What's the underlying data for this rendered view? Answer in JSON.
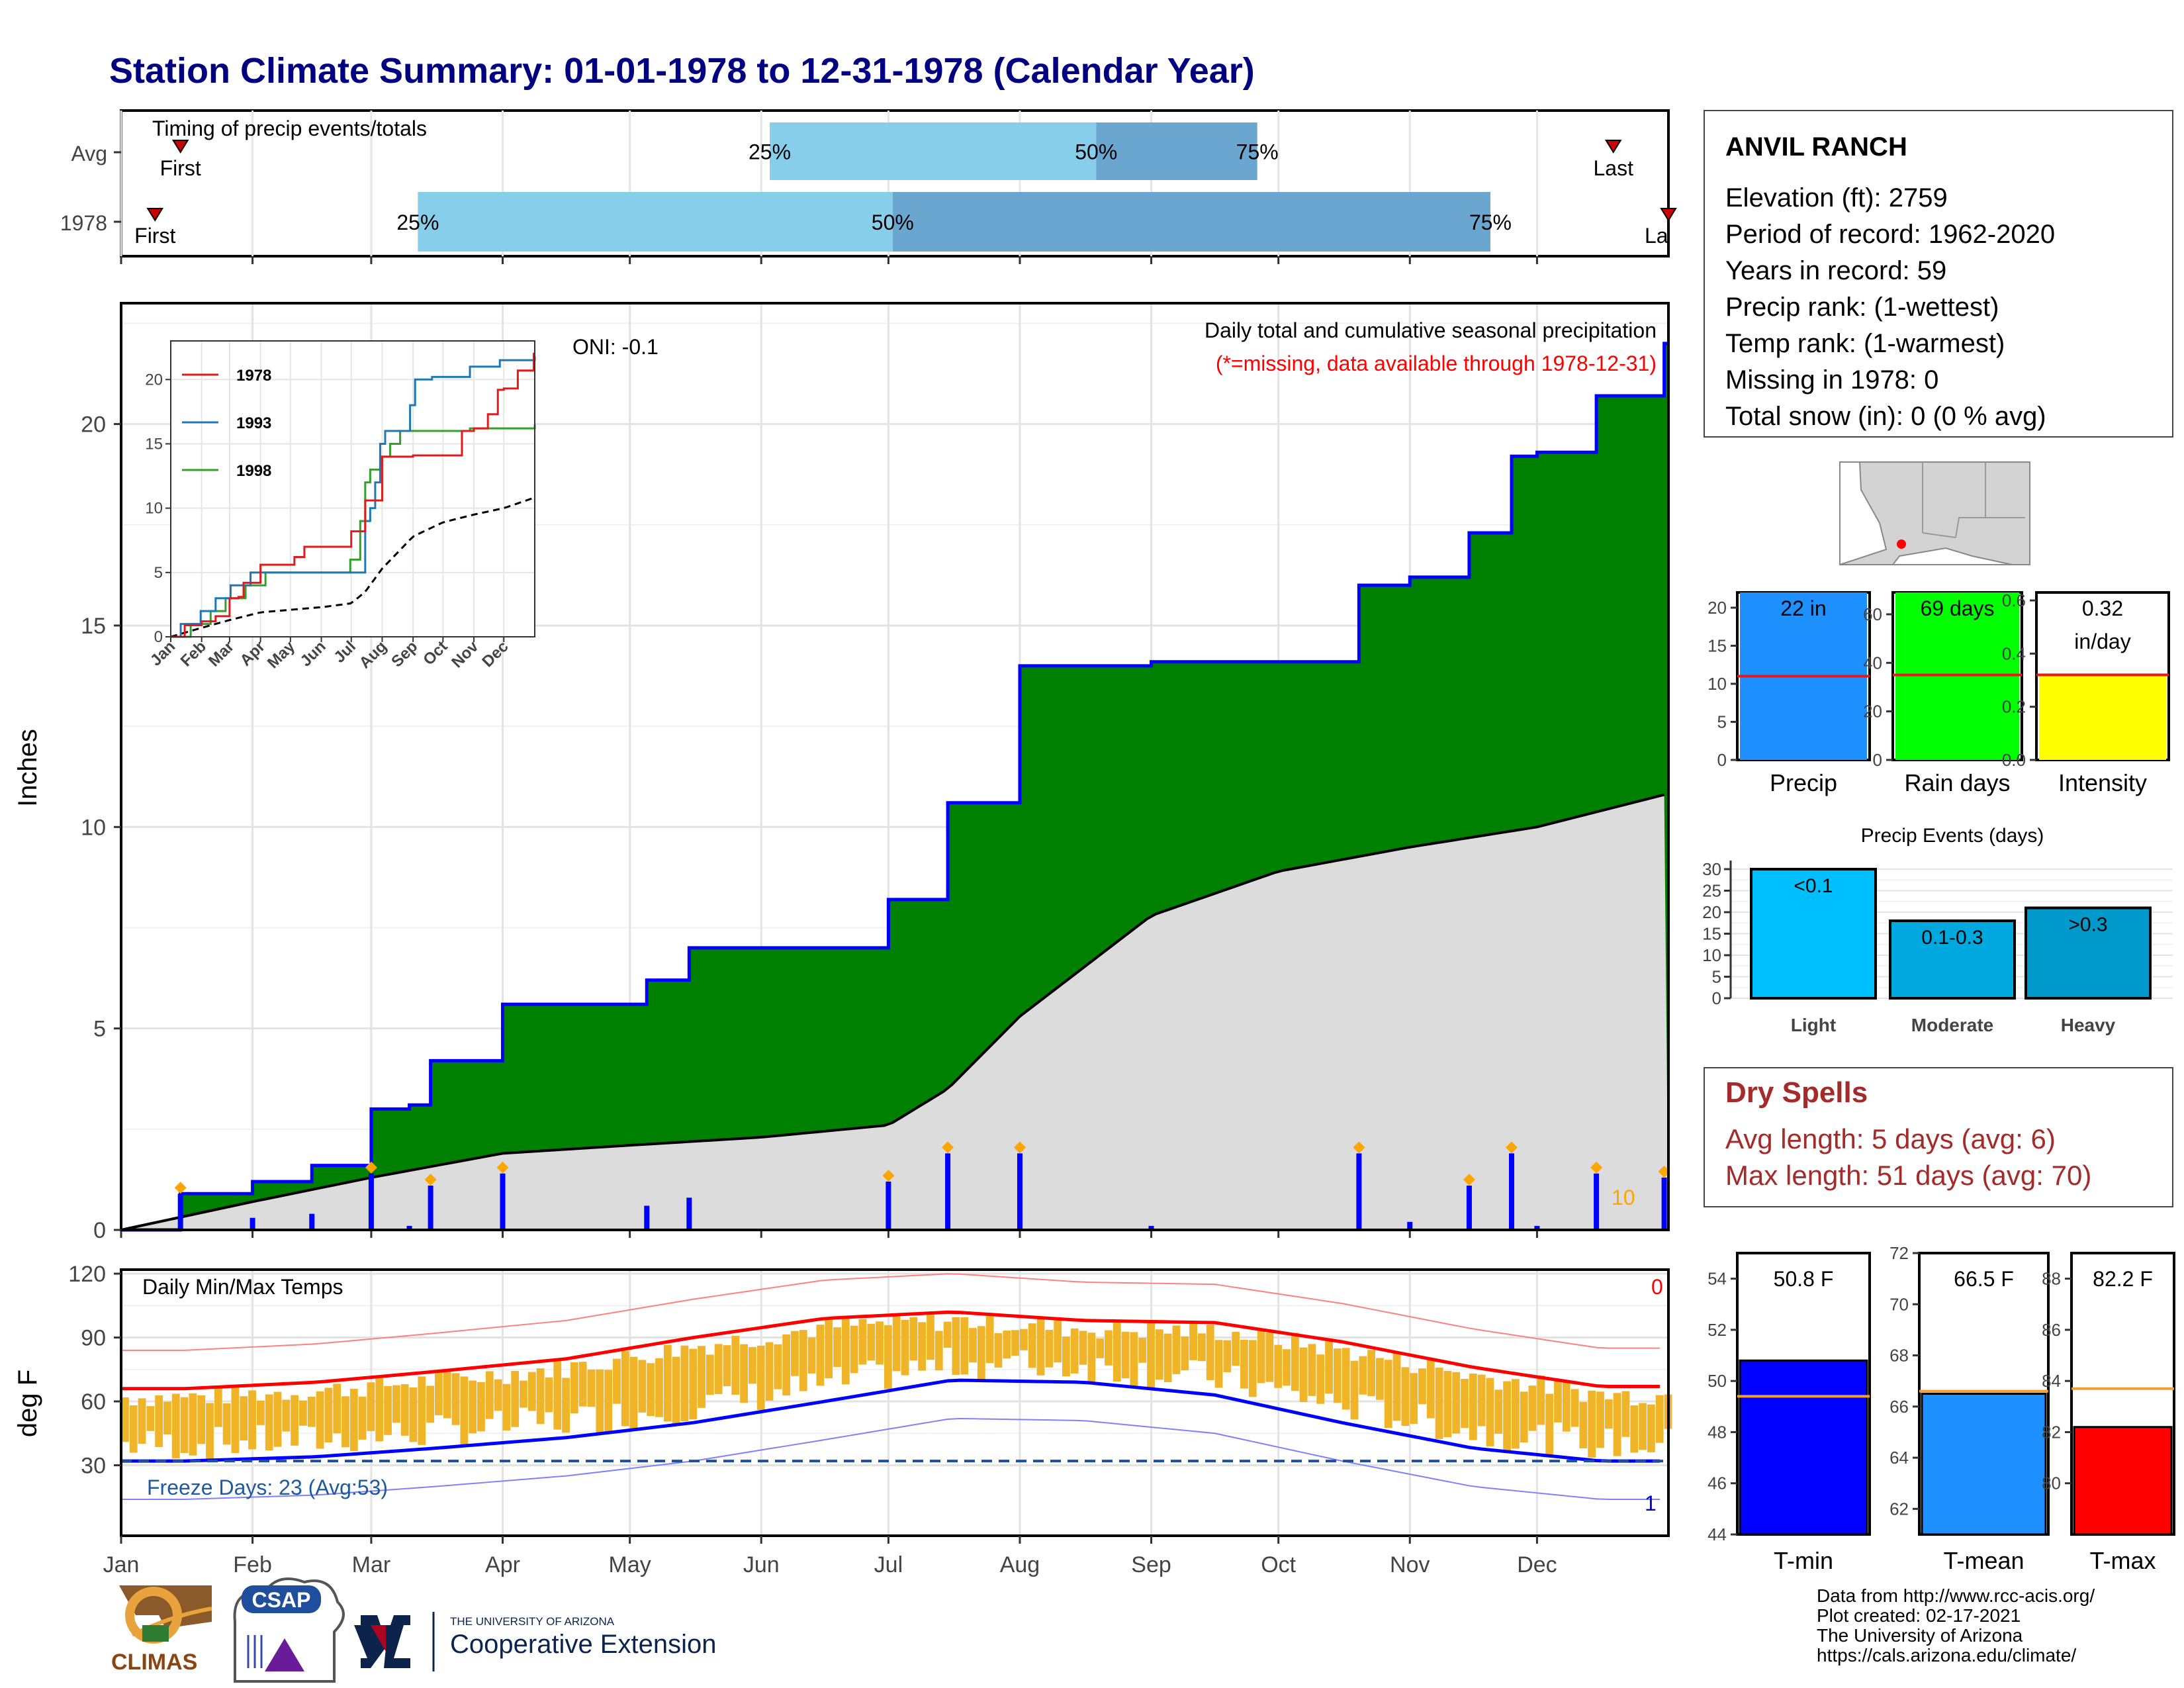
{
  "title": "Station Climate Summary: 01-01-1978 to 12-31-1978 (Calendar Year)",
  "months": [
    "Jan",
    "Feb",
    "Mar",
    "Apr",
    "May",
    "Jun",
    "Jul",
    "Aug",
    "Sep",
    "Oct",
    "Nov",
    "Dec"
  ],
  "timing": {
    "label": "Timing of precip events/totals",
    "rows": [
      {
        "name": "Avg",
        "first_day": 14,
        "p25_day": 153,
        "p50_day": 230,
        "p75_day": 268,
        "last_day": 352
      },
      {
        "name": "1978",
        "first_day": 8,
        "p25_day": 70,
        "p50_day": 182,
        "p75_day": 323,
        "last_day": 365
      }
    ],
    "first_label": "First",
    "last_label": "Last",
    "last_label_clipped": "La",
    "p25_label": "25%",
    "p50_label": "50%",
    "p75_label": "75%"
  },
  "precip": {
    "ylabel": "Inches",
    "oni": "ONI: -0.1",
    "subtitle": "Daily total and cumulative seasonal precipitation",
    "missing_note": "(*=missing, data available through 1978-12-31)",
    "y_ticks": [
      0,
      5,
      10,
      15,
      20
    ],
    "corner_count": "10",
    "colors": {
      "above": "#008000",
      "outline": "#0000ff",
      "avg": "#dcdcdc",
      "daily": "#0000ff",
      "marker": "#ffa500"
    }
  },
  "inset": {
    "legend": [
      "1978",
      "1993",
      "1998"
    ],
    "colors": [
      "#e31a1c",
      "#1f78b4",
      "#33a02c"
    ],
    "y_ticks": [
      0,
      5,
      10,
      15,
      20
    ],
    "months": [
      "Jan",
      "Feb",
      "Mar",
      "Apr",
      "May",
      "Jun",
      "Jul",
      "Aug",
      "Sep",
      "Oct",
      "Nov",
      "Dec"
    ]
  },
  "temps": {
    "ylabel": "deg F",
    "label": "Daily Min/Max Temps",
    "y_ticks": [
      30,
      60,
      90,
      120
    ],
    "freeze_label": "Freeze Days: 23 (Avg:53)",
    "count_top": "0",
    "count_bottom": "1"
  },
  "station": {
    "name": "ANVIL RANCH",
    "lines": [
      "Elevation (ft): 2759",
      "Period of record: 1962-2020",
      "Years in record: 59",
      "Precip rank:  (1-wettest)",
      "Temp rank:  (1-warmest)",
      "Missing in 1978: 0",
      "Total snow (in): 0 (0 % avg)"
    ]
  },
  "bars": [
    {
      "name": "Precip",
      "label": "22 in",
      "value": 22,
      "avg": 11,
      "ymax": 22,
      "ticks": [
        0,
        5,
        10,
        15,
        20
      ],
      "color": "#1e90ff"
    },
    {
      "name": "Rain days",
      "label": "69 days",
      "value": 69,
      "avg": 35,
      "ymax": 69,
      "ticks": [
        0,
        20,
        40,
        60
      ],
      "color": "#00ff00"
    },
    {
      "name": "Intensity",
      "label": "0.32",
      "label2": "in/day",
      "value": 0.32,
      "avg": 0.32,
      "ymax": 0.63,
      "ticks": [
        "0.0",
        "0.2",
        "0.4",
        "0.6"
      ],
      "color": "#ffff00"
    }
  ],
  "events": {
    "title": "Precip Events (days)",
    "ticks": [
      0,
      5,
      10,
      15,
      20,
      25,
      30
    ],
    "items": [
      {
        "name": "Light",
        "label": "<0.1",
        "value": 30,
        "color": "#00bfff"
      },
      {
        "name": "Moderate",
        "label": "0.1-0.3",
        "value": 18,
        "color": "#00a8e0"
      },
      {
        "name": "Heavy",
        "label": ">0.3",
        "value": 21,
        "color": "#0099cc"
      }
    ]
  },
  "dry_spells": {
    "title": "Dry Spells",
    "avg": "Avg length: 5 days (avg: 6)",
    "max": "Max length: 51 days (avg: 70)"
  },
  "temp_bars": [
    {
      "name": "T-min",
      "label": "50.8 F",
      "value": 50.8,
      "avg": 49.4,
      "ymin": 44,
      "ymax": 55,
      "ticks": [
        44,
        46,
        48,
        50,
        52,
        54
      ],
      "color": "#0000ff"
    },
    {
      "name": "T-mean",
      "label": "66.5 F",
      "value": 66.5,
      "avg": 66.6,
      "ymin": 61,
      "ymax": 72,
      "ticks": [
        62,
        64,
        66,
        68,
        70,
        72
      ],
      "color": "#1e90ff"
    },
    {
      "name": "T-max",
      "label": "82.2 F",
      "value": 82.2,
      "avg": 83.7,
      "ymin": 78,
      "ymax": 89,
      "ticks": [
        80,
        82,
        84,
        86,
        88
      ],
      "color": "#ff0000"
    }
  ],
  "credits": [
    "Data from http://www.rcc-acis.org/",
    "Plot created: 02-17-2021",
    "The University of Arizona",
    "https://cals.arizona.edu/climate/"
  ],
  "logos": {
    "climas": "CLIMAS",
    "csap": "CSAP",
    "ua_small": "THE UNIVERSITY OF ARIZONA",
    "ua_big": "Cooperative Extension"
  },
  "chart_data": [
    {
      "type": "line",
      "title": "Daily total and cumulative seasonal precipitation",
      "ylabel": "Inches",
      "ylim": [
        0,
        23
      ],
      "series": [
        {
          "name": "1978",
          "x": [
            "01-01",
            "01-15",
            "02-01",
            "02-15",
            "03-01",
            "03-10",
            "03-15",
            "04-01",
            "04-15",
            "05-01",
            "05-05",
            "05-15",
            "06-01",
            "06-15",
            "07-01",
            "07-15",
            "08-01",
            "08-15",
            "09-01",
            "09-15",
            "10-01",
            "10-15",
            "10-20",
            "11-01",
            "11-15",
            "11-25",
            "12-01",
            "12-15",
            "12-31"
          ],
          "values": [
            0,
            0.9,
            1.2,
            1.6,
            3.0,
            3.1,
            4.2,
            5.6,
            5.6,
            5.6,
            6.2,
            7.0,
            7.0,
            7.0,
            8.2,
            10.6,
            14.0,
            14.0,
            14.1,
            14.1,
            14.1,
            14.1,
            16.0,
            16.2,
            17.3,
            19.2,
            19.3,
            20.7,
            22.0
          ]
        },
        {
          "name": "Average",
          "x": [
            "01-01",
            "02-01",
            "03-01",
            "04-01",
            "05-01",
            "06-01",
            "07-01",
            "07-15",
            "08-01",
            "09-01",
            "10-01",
            "11-01",
            "12-01",
            "12-31"
          ],
          "values": [
            0,
            0.7,
            1.3,
            1.9,
            2.1,
            2.3,
            2.6,
            3.5,
            5.3,
            7.8,
            8.9,
            9.5,
            10.0,
            10.8
          ]
        }
      ]
    },
    {
      "type": "line",
      "title": "Daily Min/Max Temps",
      "ylabel": "deg F",
      "ylim": [
        0,
        120
      ],
      "series": [
        {
          "name": "Avg max",
          "x": [
            "Jan",
            "Feb",
            "Mar",
            "Apr",
            "May",
            "Jun",
            "Jul",
            "Aug",
            "Sep",
            "Oct",
            "Nov",
            "Dec"
          ],
          "values": [
            66,
            69,
            74,
            80,
            90,
            99,
            102,
            98,
            97,
            88,
            76,
            67
          ]
        },
        {
          "name": "Avg min",
          "x": [
            "Jan",
            "Feb",
            "Mar",
            "Apr",
            "May",
            "Jun",
            "Jul",
            "Aug",
            "Sep",
            "Oct",
            "Nov",
            "Dec"
          ],
          "values": [
            32,
            34,
            38,
            43,
            50,
            60,
            70,
            69,
            63,
            50,
            38,
            32
          ]
        }
      ]
    },
    {
      "type": "bar",
      "title": "Precip Events (days)",
      "categories": [
        "Light",
        "Moderate",
        "Heavy"
      ],
      "values": [
        30,
        18,
        21
      ]
    },
    {
      "type": "bar",
      "categories": [
        "Precip",
        "Rain days",
        "Intensity"
      ],
      "values": [
        22,
        69,
        0.32
      ]
    },
    {
      "type": "bar",
      "categories": [
        "T-min",
        "T-mean",
        "T-max"
      ],
      "values": [
        50.8,
        66.5,
        82.2
      ]
    }
  ]
}
